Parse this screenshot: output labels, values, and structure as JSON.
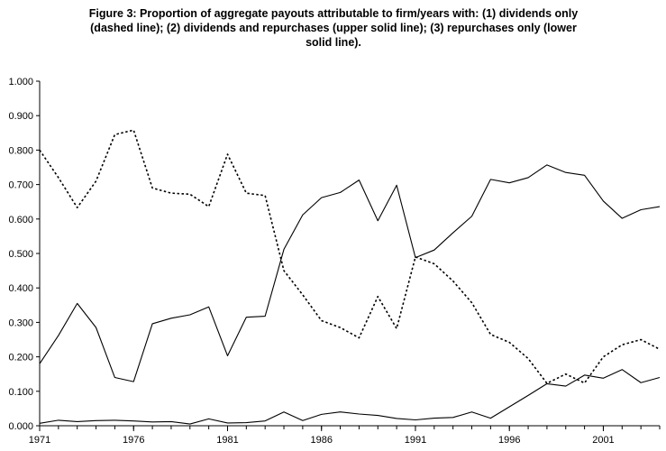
{
  "chart_data": {
    "type": "line",
    "title_lines": [
      "Figure 3: Proportion of aggregate payouts attributable to firm/years with: (1) dividends only",
      "(dashed line); (2) dividends and repurchases (upper solid line); (3) repurchases only (lower",
      "solid line)."
    ],
    "xlabel": "",
    "ylabel": "",
    "xlim": [
      1971,
      2004
    ],
    "ylim": [
      0,
      1
    ],
    "x_ticks": [
      "1971",
      "1976",
      "1981",
      "1986",
      "1991",
      "1996",
      "2001"
    ],
    "y_ticks": [
      "0.000",
      "0.100",
      "0.200",
      "0.300",
      "0.400",
      "0.500",
      "0.600",
      "0.700",
      "0.800",
      "0.900",
      "1.000"
    ],
    "grid": false,
    "legend": "none",
    "x": [
      1971,
      1972,
      1973,
      1974,
      1975,
      1976,
      1977,
      1978,
      1979,
      1980,
      1981,
      1982,
      1983,
      1984,
      1985,
      1986,
      1987,
      1988,
      1989,
      1990,
      1991,
      1992,
      1993,
      1994,
      1995,
      1996,
      1997,
      1998,
      1999,
      2000,
      2001,
      2002,
      2003,
      2004
    ],
    "series": [
      {
        "style": "dashed",
        "color": "#000000",
        "values": [
          0.8,
          0.72,
          0.633,
          0.71,
          0.845,
          0.858,
          0.69,
          0.675,
          0.672,
          0.636,
          0.788,
          0.675,
          0.668,
          0.45,
          0.38,
          0.305,
          0.285,
          0.255,
          0.375,
          0.282,
          0.49,
          0.47,
          0.42,
          0.357,
          0.265,
          0.242,
          0.195,
          0.123,
          0.15,
          0.124,
          0.2,
          0.235,
          0.25,
          0.222
        ]
      },
      {
        "style": "solid",
        "color": "#000000",
        "values": [
          0.18,
          0.262,
          0.355,
          0.285,
          0.14,
          0.128,
          0.296,
          0.312,
          0.322,
          0.345,
          0.203,
          0.315,
          0.318,
          0.512,
          0.612,
          0.662,
          0.677,
          0.713,
          0.595,
          0.698,
          0.488,
          0.51,
          0.56,
          0.608,
          0.715,
          0.705,
          0.72,
          0.757,
          0.735,
          0.727,
          0.652,
          0.602,
          0.627,
          0.636
        ]
      },
      {
        "style": "solid",
        "color": "#000000",
        "values": [
          0.007,
          0.016,
          0.012,
          0.015,
          0.016,
          0.014,
          0.011,
          0.012,
          0.005,
          0.02,
          0.008,
          0.009,
          0.014,
          0.04,
          0.015,
          0.033,
          0.04,
          0.034,
          0.03,
          0.021,
          0.017,
          0.022,
          0.024,
          0.04,
          0.022,
          0.055,
          0.088,
          0.122,
          0.115,
          0.147,
          0.138,
          0.163,
          0.125,
          0.14
        ]
      }
    ]
  }
}
